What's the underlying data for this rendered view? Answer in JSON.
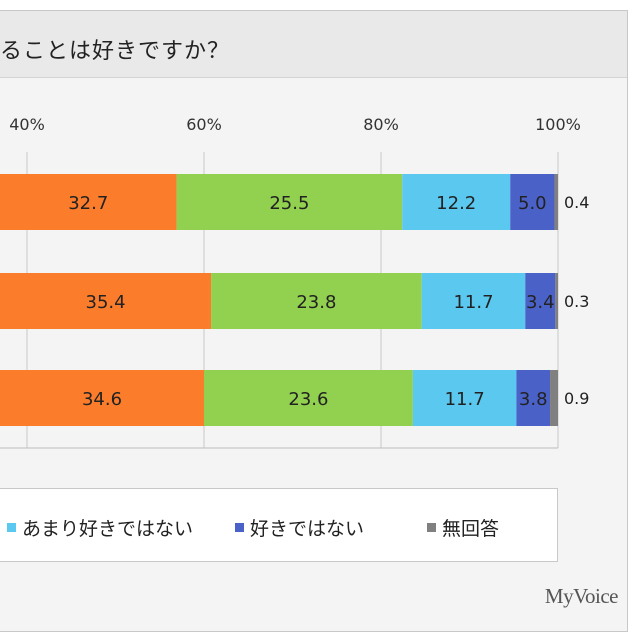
{
  "title": "ることは好きですか？",
  "brand": "MyVoice",
  "chart_data": {
    "type": "bar",
    "orientation": "horizontal",
    "stacked": true,
    "xlim": [
      0,
      100
    ],
    "ticks": [
      "40%",
      "60%",
      "80%",
      "100%"
    ],
    "rows": [
      "row-1",
      "row-2",
      "row-3"
    ],
    "series": [
      {
        "values": [
          32.7,
          35.4,
          34.6
        ],
        "color": "#fb7d2c"
      },
      {
        "values": [
          25.5,
          23.8,
          23.6
        ],
        "color": "#92d050"
      },
      {
        "name": "あまり好きではない",
        "values": [
          12.2,
          11.7,
          11.7
        ],
        "color": "#5bc8ef"
      },
      {
        "name": "好きではない",
        "values": [
          5.0,
          3.4,
          3.8
        ],
        "color": "#4a62c8"
      },
      {
        "name": "無回答",
        "values": [
          0.4,
          0.3,
          0.9
        ],
        "color": "#808080"
      }
    ],
    "value_labels": [
      [
        "32.7",
        "25.5",
        "12.2",
        "5.0",
        "0.4"
      ],
      [
        "35.4",
        "23.8",
        "11.7",
        "3.4",
        "0.3"
      ],
      [
        "34.6",
        "23.6",
        "11.7",
        "3.8",
        "0.9"
      ]
    ],
    "legend": [
      "あまり好きではない",
      "好きではない",
      "無回答"
    ],
    "grid": true
  }
}
